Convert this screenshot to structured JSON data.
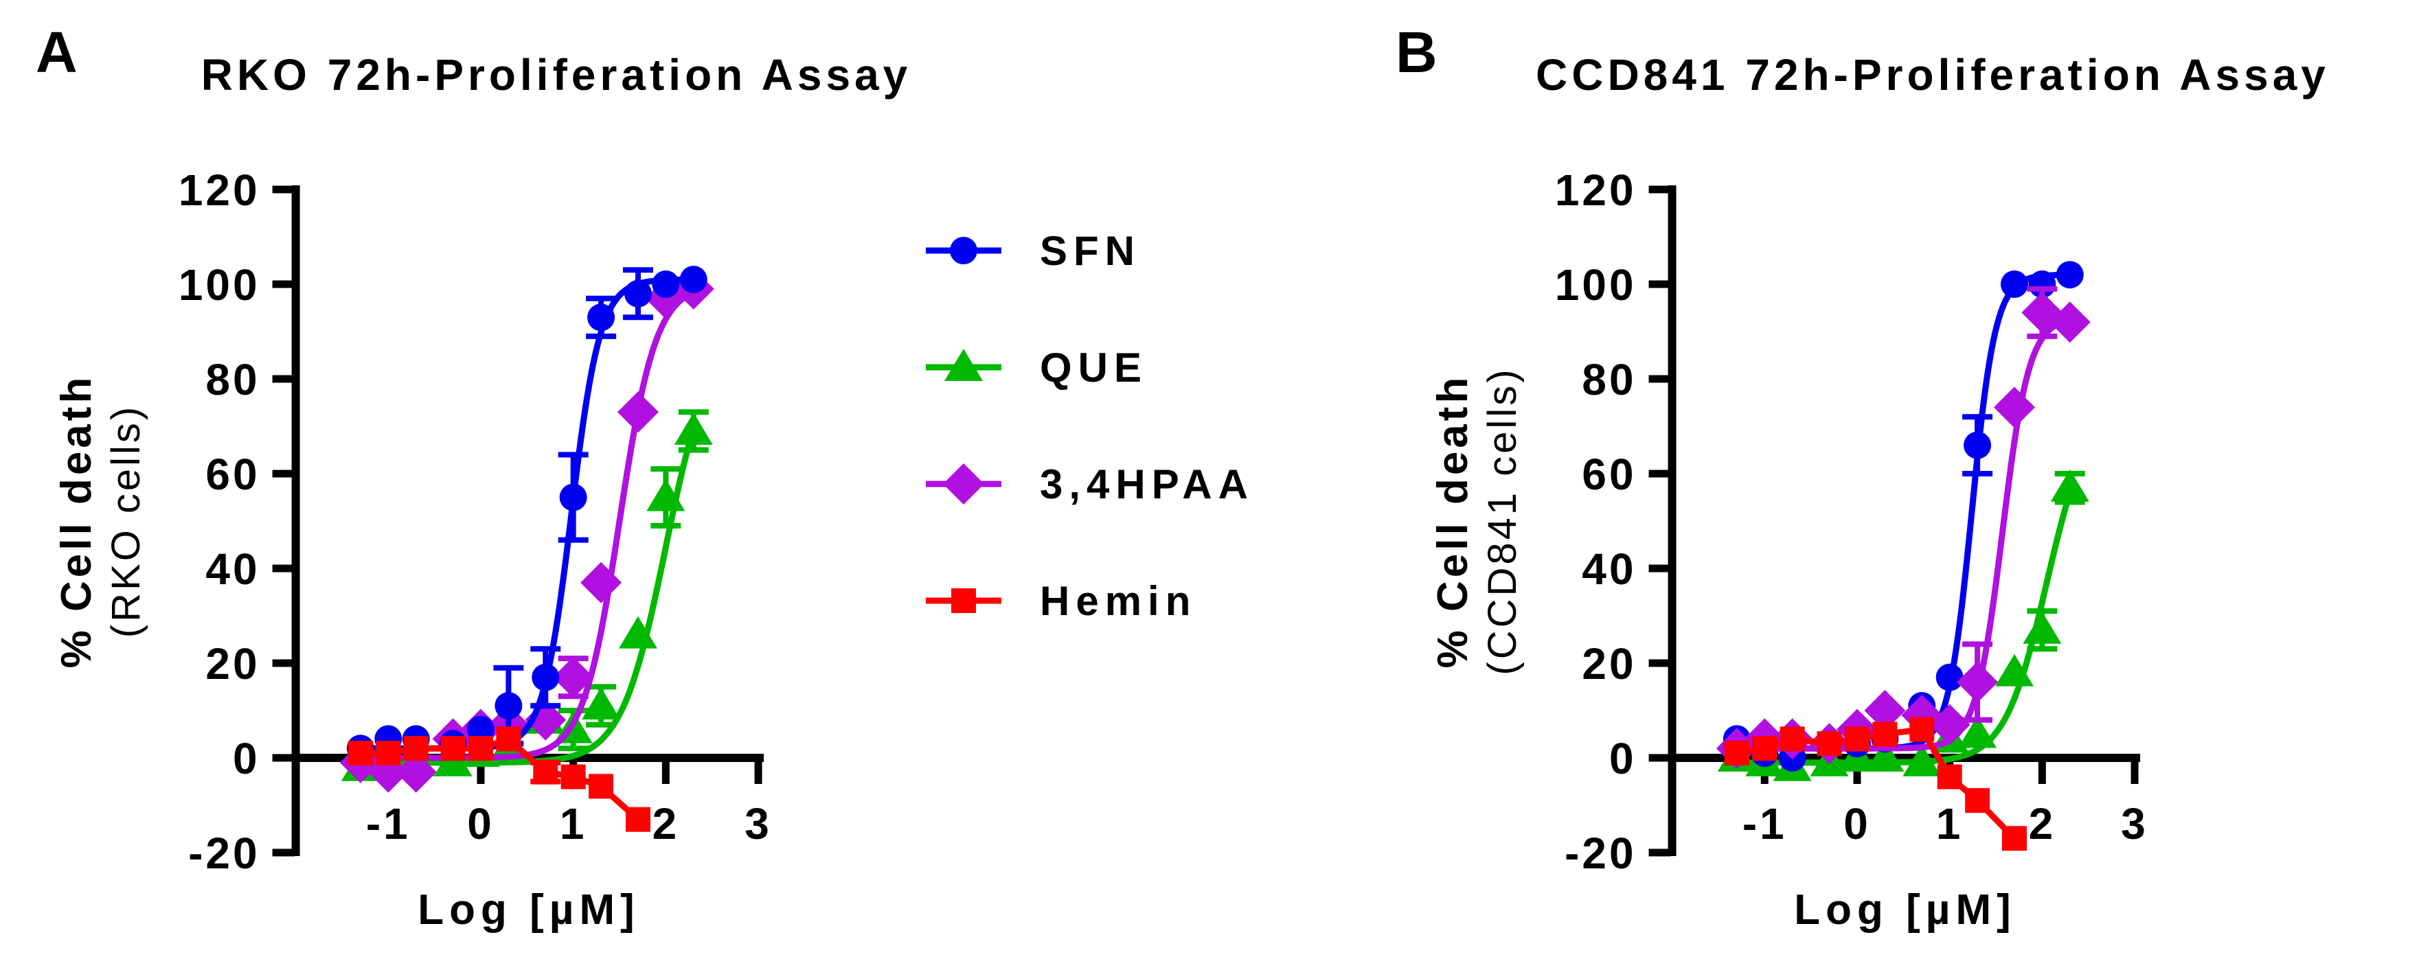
{
  "figure": {
    "background": "#ffffff",
    "axis_color": "#000000",
    "accent_colors": {
      "sfn_blue": "#0000F0",
      "que_green": "#00B800",
      "hpaa_purple": "#B010E0",
      "hemin_red": "#FF0000"
    }
  },
  "legend": {
    "entries": [
      {
        "label": "SFN",
        "color": "#0000F0",
        "marker": "circle"
      },
      {
        "label": "QUE",
        "color": "#00B800",
        "marker": "triangle"
      },
      {
        "label": "3,4HPAA",
        "color": "#B010E0",
        "marker": "diamond"
      },
      {
        "label": "Hemin",
        "color": "#FF0000",
        "marker": "square"
      }
    ]
  },
  "chart_data": [
    {
      "type": "scatter",
      "panel_letter": "A",
      "title": "RKO 72h-Proliferation Assay",
      "xlabel": "Log [µM]",
      "ylabel_main": "% Cell death",
      "ylabel_sub": "(RKO cells)",
      "xlim": [
        -2,
        3
      ],
      "ylim": [
        -20,
        120
      ],
      "xticks": [
        -1,
        0,
        1,
        2,
        3
      ],
      "yticks": [
        -20,
        0,
        20,
        40,
        60,
        80,
        100,
        120
      ],
      "grid": false,
      "legend_position": "right-of-panel",
      "draw_order": [
        1,
        2,
        0,
        3
      ],
      "series": [
        {
          "name": "SFN",
          "color": "#0000F0",
          "marker": "circle",
          "x": [
            -1.3,
            -1.0,
            -0.7,
            -0.3,
            0.0,
            0.3,
            0.7,
            1.0,
            1.3,
            1.7,
            2.0,
            2.3
          ],
          "y": [
            2,
            4,
            4,
            3,
            6,
            11,
            17,
            55,
            93,
            98,
            100,
            101
          ],
          "err": [
            0,
            0,
            0,
            0,
            0,
            8,
            6,
            9,
            4,
            5,
            0,
            0
          ],
          "fit": {
            "bottom": 2,
            "top": 101,
            "logec50": 0.98,
            "hill": 2.8
          }
        },
        {
          "name": "QUE",
          "color": "#00B800",
          "marker": "triangle",
          "x": [
            -1.3,
            -1.0,
            -0.7,
            -0.3,
            0.0,
            0.3,
            0.7,
            1.0,
            1.3,
            1.7,
            2.0,
            2.3
          ],
          "y": [
            -2,
            -1,
            -1,
            -1,
            1,
            2,
            8,
            6,
            11,
            26,
            55,
            69
          ],
          "err": [
            0,
            0,
            0,
            0,
            0,
            0,
            0,
            4,
            4,
            0,
            6,
            4
          ],
          "fit": {
            "bottom": -1,
            "top": 90,
            "logec50": 2.0,
            "hill": 1.8
          }
        },
        {
          "name": "3,4HPAA",
          "color": "#B010E0",
          "marker": "diamond",
          "x": [
            -1.3,
            -1.0,
            -0.7,
            -0.3,
            0.0,
            0.3,
            0.7,
            1.0,
            1.3,
            1.7,
            2.0,
            2.3
          ],
          "y": [
            -1,
            -3,
            -3,
            4,
            6,
            7,
            8,
            17,
            37,
            73,
            97,
            99
          ],
          "err": [
            0,
            0,
            0,
            0,
            0,
            0,
            0,
            4,
            0,
            0,
            0,
            0
          ],
          "fit": {
            "bottom": 0,
            "top": 100,
            "logec50": 1.5,
            "hill": 2.2
          }
        },
        {
          "name": "Hemin",
          "color": "#FF0000",
          "marker": "square",
          "x": [
            -1.3,
            -1.0,
            -0.7,
            -0.3,
            0.0,
            0.3,
            0.7,
            1.0,
            1.3,
            1.7
          ],
          "y": [
            1,
            1,
            2,
            2,
            2,
            4,
            -3,
            -4,
            -6,
            -13
          ],
          "err": [
            0,
            0,
            0,
            0,
            0,
            0,
            2,
            0,
            0,
            0
          ],
          "fit": null
        }
      ]
    },
    {
      "type": "scatter",
      "panel_letter": "B",
      "title": "CCD841 72h-Proliferation Assay",
      "xlabel": "Log [µM]",
      "ylabel_main": "% Cell death",
      "ylabel_sub": "(CCD841 cells)",
      "xlim": [
        -2,
        3
      ],
      "ylim": [
        -20,
        120
      ],
      "xticks": [
        -1,
        0,
        1,
        2,
        3
      ],
      "yticks": [
        -20,
        0,
        20,
        40,
        60,
        80,
        100,
        120
      ],
      "grid": false,
      "legend_position": "none",
      "draw_order": [
        1,
        0,
        2,
        3
      ],
      "series": [
        {
          "name": "SFN",
          "color": "#0000F0",
          "marker": "circle",
          "x": [
            -1.3,
            -1.0,
            -0.7,
            -0.3,
            0.0,
            0.3,
            0.7,
            1.0,
            1.3,
            1.7,
            2.0,
            2.3
          ],
          "y": [
            4,
            1,
            0,
            3,
            3,
            4,
            11,
            17,
            66,
            100,
            100,
            102
          ],
          "err": [
            0,
            0,
            0,
            0,
            0,
            0,
            0,
            0,
            6,
            0,
            0,
            0
          ],
          "fit": {
            "bottom": 2,
            "top": 102,
            "logec50": 1.24,
            "hill": 3.4
          }
        },
        {
          "name": "QUE",
          "color": "#00B800",
          "marker": "triangle",
          "x": [
            -1.3,
            -1.0,
            -0.7,
            -0.3,
            0.0,
            0.3,
            0.7,
            1.0,
            1.3,
            1.7,
            2.0,
            2.3
          ],
          "y": [
            0,
            -1,
            -2,
            -1,
            0,
            0,
            -1,
            4,
            5,
            18,
            27,
            57
          ],
          "err": [
            0,
            0,
            0,
            0,
            0,
            0,
            0,
            0,
            0,
            0,
            4,
            3
          ],
          "fit": {
            "bottom": -1,
            "top": 75,
            "logec50": 2.05,
            "hill": 1.9
          }
        },
        {
          "name": "3,4HPAA",
          "color": "#B010E0",
          "marker": "diamond",
          "x": [
            -1.3,
            -1.0,
            -0.7,
            -0.3,
            0.0,
            0.3,
            0.7,
            1.0,
            1.3,
            1.7,
            2.0,
            2.3
          ],
          "y": [
            2,
            4,
            4,
            3,
            6,
            10,
            9,
            7,
            16,
            74,
            94,
            92
          ],
          "err": [
            0,
            0,
            0,
            0,
            0,
            0,
            0,
            0,
            8,
            0,
            5,
            0
          ],
          "fit": {
            "bottom": 2,
            "top": 93,
            "logec50": 1.57,
            "hill": 3.0
          }
        },
        {
          "name": "Hemin",
          "color": "#FF0000",
          "marker": "square",
          "x": [
            -1.3,
            -1.0,
            -0.7,
            -0.3,
            0.0,
            0.3,
            0.7,
            1.0,
            1.3,
            1.7
          ],
          "y": [
            1,
            2,
            4,
            3,
            4,
            5,
            6,
            -4,
            -9,
            -17
          ],
          "err": [
            0,
            0,
            0,
            0,
            0,
            0,
            0,
            0,
            0,
            0
          ],
          "fit": null
        }
      ]
    }
  ]
}
